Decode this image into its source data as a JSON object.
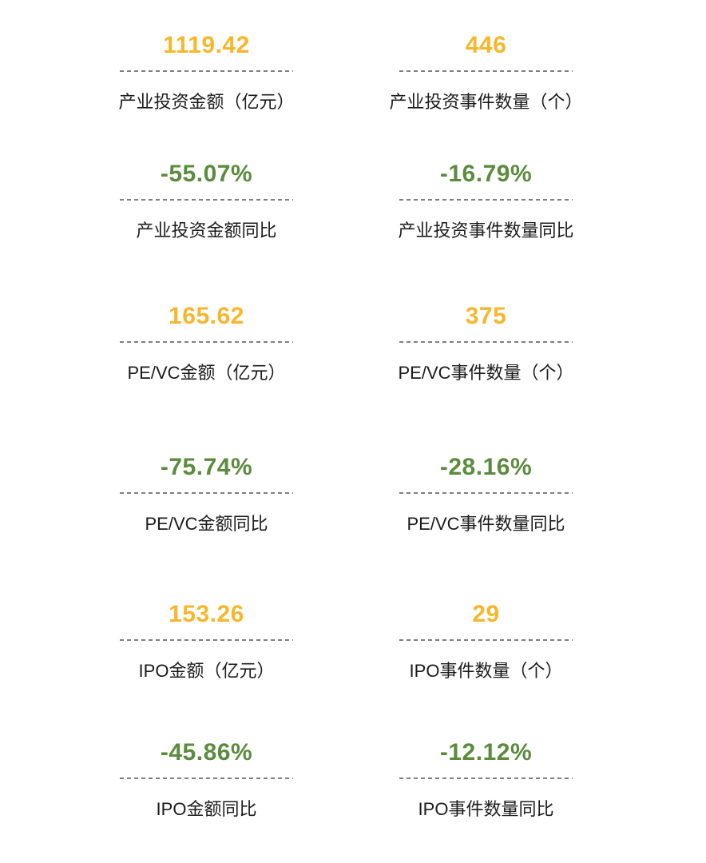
{
  "page": {
    "kind": "investment-kpi-dashboard",
    "background": "#ffffff"
  },
  "colors": {
    "amount_value": "#F8B62C",
    "yoy_negative_value": "#5B8C3E",
    "label": "#1b1b1b",
    "divider": "#7f7f7f",
    "background": "#ffffff"
  },
  "metrics": [
    {
      "value": "1119.42",
      "label": "产业投资金额（亿元）",
      "kind": "amount"
    },
    {
      "value": "446",
      "label": "产业投资事件数量（个）",
      "kind": "amount"
    },
    {
      "value": "-55.07%",
      "label": "产业投资金额同比",
      "kind": "yoy"
    },
    {
      "value": "-16.79%",
      "label": "产业投资事件数量同比",
      "kind": "yoy"
    },
    {
      "value": "165.62",
      "label": "PE/VC金额（亿元）",
      "kind": "amount"
    },
    {
      "value": "375",
      "label": "PE/VC事件数量（个）",
      "kind": "amount"
    },
    {
      "value": "-75.74%",
      "label": "PE/VC金额同比",
      "kind": "yoy"
    },
    {
      "value": "-28.16%",
      "label": "PE/VC事件数量同比",
      "kind": "yoy"
    },
    {
      "value": "153.26",
      "label": "IPO金额（亿元）",
      "kind": "amount"
    },
    {
      "value": "29",
      "label": "IPO事件数量（个）",
      "kind": "amount"
    },
    {
      "value": "-45.86%",
      "label": "IPO金额同比",
      "kind": "yoy"
    },
    {
      "value": "-12.12%",
      "label": "IPO事件数量同比",
      "kind": "yoy"
    }
  ]
}
